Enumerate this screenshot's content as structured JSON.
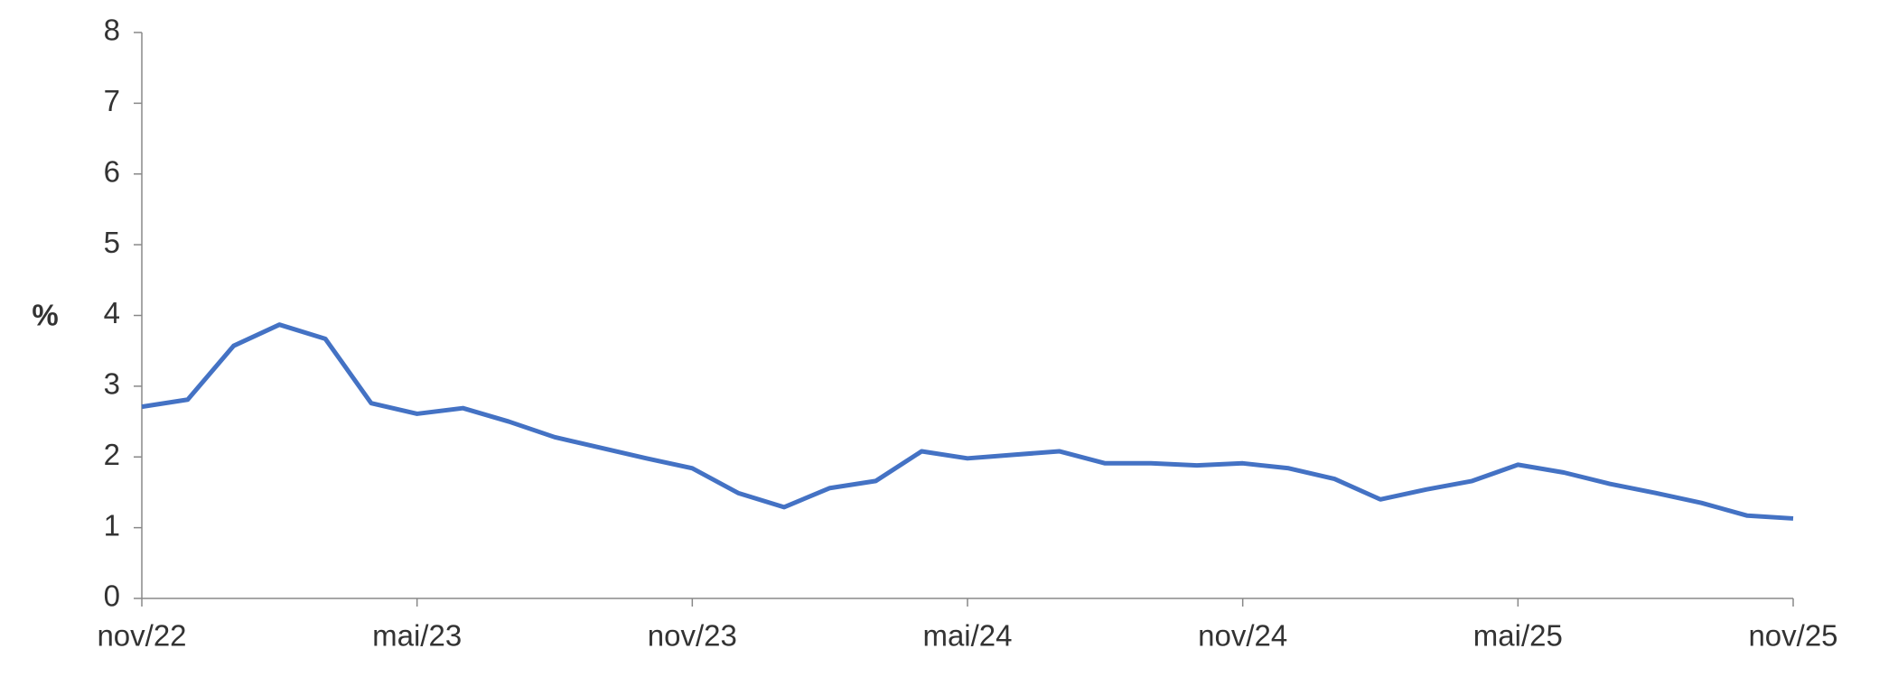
{
  "chart_data": {
    "type": "line",
    "y_label": "%",
    "categories": [
      "nov/22",
      null,
      null,
      null,
      null,
      null,
      "mai/23",
      null,
      null,
      null,
      null,
      null,
      "nov/23",
      null,
      null,
      null,
      null,
      null,
      "mai/24",
      null,
      null,
      null,
      null,
      null,
      "nov/24",
      null,
      null,
      null,
      null,
      null,
      "mai/25",
      null,
      null,
      null,
      null,
      null,
      "nov/25"
    ],
    "series": [
      {
        "color": "#4472c4",
        "values": [
          2.71,
          2.81,
          3.57,
          3.87,
          3.67,
          2.76,
          2.61,
          2.69,
          2.5,
          2.28,
          2.13,
          1.98,
          1.84,
          1.49,
          1.29,
          1.56,
          1.66,
          2.08,
          1.98,
          2.03,
          2.08,
          1.91,
          1.91,
          1.88,
          1.91,
          1.84,
          1.69,
          1.4,
          1.54,
          1.66,
          1.89,
          1.78,
          1.62,
          1.49,
          1.35,
          1.17,
          1.13
        ]
      }
    ],
    "ylim": [
      0,
      8
    ],
    "yticks": [
      0,
      1,
      2,
      3,
      4,
      5,
      6,
      7,
      8
    ],
    "grid": false
  }
}
